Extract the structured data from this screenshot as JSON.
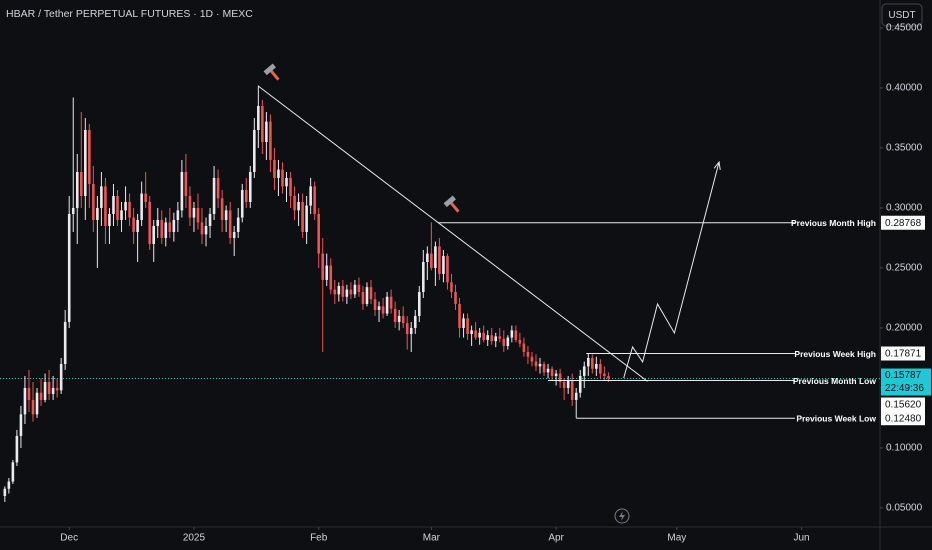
{
  "chart_data": {
    "type": "candlestick",
    "title": "HBAR / Tether PERPETUAL FUTURES · 1D · MEXC",
    "currency": "USDT",
    "colors": {
      "up": "#e8eaef",
      "down": "#ef5350",
      "last_price": "#22c7d6"
    },
    "ylim": [
      0.0358,
      0.4733
    ],
    "yticks": [
      {
        "value": 0.05,
        "label": "0.05000"
      },
      {
        "value": 0.1,
        "label": "0.10000"
      },
      {
        "value": 0.15,
        "label": "0.15000"
      },
      {
        "value": 0.2,
        "label": "0.20000"
      },
      {
        "value": 0.25,
        "label": "0.25000"
      },
      {
        "value": 0.3,
        "label": "0.30000"
      },
      {
        "value": 0.35,
        "label": "0.35000"
      },
      {
        "value": 0.4,
        "label": "0.40000"
      },
      {
        "value": 0.45,
        "label": "0.45000"
      }
    ],
    "xlim": [
      -1.2,
      216.5
    ],
    "xticks": [
      {
        "value": 16,
        "label": "Dec"
      },
      {
        "value": 47,
        "label": "2025"
      },
      {
        "value": 78,
        "label": "Feb"
      },
      {
        "value": 106,
        "label": "Mar"
      },
      {
        "value": 137,
        "label": "Apr"
      },
      {
        "value": 167,
        "label": "May"
      },
      {
        "value": 198,
        "label": "Jun"
      }
    ],
    "ohlc": [
      [
        0.06,
        0.068,
        0.055,
        0.066
      ],
      [
        0.066,
        0.075,
        0.062,
        0.072
      ],
      [
        0.072,
        0.09,
        0.07,
        0.088
      ],
      [
        0.088,
        0.115,
        0.085,
        0.11
      ],
      [
        0.11,
        0.135,
        0.1,
        0.128
      ],
      [
        0.128,
        0.16,
        0.12,
        0.15
      ],
      [
        0.15,
        0.165,
        0.13,
        0.14
      ],
      [
        0.14,
        0.155,
        0.122,
        0.128
      ],
      [
        0.128,
        0.15,
        0.125,
        0.146
      ],
      [
        0.146,
        0.158,
        0.135,
        0.14
      ],
      [
        0.14,
        0.162,
        0.138,
        0.155
      ],
      [
        0.155,
        0.165,
        0.14,
        0.145
      ],
      [
        0.145,
        0.16,
        0.14,
        0.15
      ],
      [
        0.15,
        0.158,
        0.142,
        0.148
      ],
      [
        0.148,
        0.175,
        0.145,
        0.17
      ],
      [
        0.17,
        0.215,
        0.165,
        0.205
      ],
      [
        0.205,
        0.31,
        0.2,
        0.295
      ],
      [
        0.295,
        0.392,
        0.28,
        0.3
      ],
      [
        0.3,
        0.345,
        0.27,
        0.33
      ],
      [
        0.33,
        0.38,
        0.3,
        0.31
      ],
      [
        0.31,
        0.375,
        0.29,
        0.365
      ],
      [
        0.365,
        0.37,
        0.3,
        0.32
      ],
      [
        0.32,
        0.335,
        0.28,
        0.29
      ],
      [
        0.29,
        0.31,
        0.25,
        0.3
      ],
      [
        0.3,
        0.33,
        0.285,
        0.318
      ],
      [
        0.318,
        0.325,
        0.27,
        0.285
      ],
      [
        0.285,
        0.3,
        0.27,
        0.295
      ],
      [
        0.295,
        0.32,
        0.285,
        0.31
      ],
      [
        0.31,
        0.315,
        0.285,
        0.29
      ],
      [
        0.29,
        0.305,
        0.28,
        0.298
      ],
      [
        0.298,
        0.318,
        0.29,
        0.305
      ],
      [
        0.305,
        0.312,
        0.285,
        0.292
      ],
      [
        0.292,
        0.3,
        0.27,
        0.28
      ],
      [
        0.28,
        0.295,
        0.255,
        0.29
      ],
      [
        0.29,
        0.322,
        0.285,
        0.312
      ],
      [
        0.312,
        0.33,
        0.3,
        0.305
      ],
      [
        0.305,
        0.31,
        0.265,
        0.27
      ],
      [
        0.27,
        0.29,
        0.255,
        0.285
      ],
      [
        0.285,
        0.3,
        0.275,
        0.29
      ],
      [
        0.29,
        0.298,
        0.27,
        0.275
      ],
      [
        0.275,
        0.292,
        0.268,
        0.288
      ],
      [
        0.288,
        0.3,
        0.275,
        0.28
      ],
      [
        0.28,
        0.296,
        0.272,
        0.29
      ],
      [
        0.29,
        0.305,
        0.28,
        0.298
      ],
      [
        0.298,
        0.34,
        0.292,
        0.33
      ],
      [
        0.33,
        0.345,
        0.3,
        0.31
      ],
      [
        0.31,
        0.318,
        0.285,
        0.292
      ],
      [
        0.292,
        0.305,
        0.28,
        0.3
      ],
      [
        0.3,
        0.312,
        0.282,
        0.288
      ],
      [
        0.288,
        0.3,
        0.27,
        0.278
      ],
      [
        0.278,
        0.292,
        0.268,
        0.285
      ],
      [
        0.285,
        0.3,
        0.275,
        0.295
      ],
      [
        0.295,
        0.335,
        0.29,
        0.325
      ],
      [
        0.325,
        0.332,
        0.3,
        0.308
      ],
      [
        0.308,
        0.315,
        0.28,
        0.29
      ],
      [
        0.29,
        0.302,
        0.28,
        0.298
      ],
      [
        0.298,
        0.305,
        0.27,
        0.275
      ],
      [
        0.275,
        0.285,
        0.26,
        0.28
      ],
      [
        0.28,
        0.3,
        0.275,
        0.292
      ],
      [
        0.292,
        0.32,
        0.288,
        0.315
      ],
      [
        0.315,
        0.325,
        0.3,
        0.305
      ],
      [
        0.305,
        0.335,
        0.3,
        0.33
      ],
      [
        0.33,
        0.375,
        0.325,
        0.365
      ],
      [
        0.365,
        0.402,
        0.35,
        0.385
      ],
      [
        0.385,
        0.39,
        0.345,
        0.355
      ],
      [
        0.355,
        0.38,
        0.34,
        0.372
      ],
      [
        0.372,
        0.378,
        0.33,
        0.34
      ],
      [
        0.34,
        0.35,
        0.315,
        0.325
      ],
      [
        0.325,
        0.34,
        0.31,
        0.332
      ],
      [
        0.332,
        0.338,
        0.312,
        0.318
      ],
      [
        0.318,
        0.33,
        0.305,
        0.325
      ],
      [
        0.325,
        0.33,
        0.3,
        0.31
      ],
      [
        0.31,
        0.318,
        0.29,
        0.298
      ],
      [
        0.298,
        0.312,
        0.285,
        0.305
      ],
      [
        0.305,
        0.312,
        0.275,
        0.28
      ],
      [
        0.28,
        0.31,
        0.27,
        0.302
      ],
      [
        0.302,
        0.325,
        0.295,
        0.318
      ],
      [
        0.318,
        0.322,
        0.29,
        0.295
      ],
      [
        0.295,
        0.3,
        0.25,
        0.262
      ],
      [
        0.262,
        0.275,
        0.18,
        0.24
      ],
      [
        0.24,
        0.262,
        0.235,
        0.252
      ],
      [
        0.252,
        0.258,
        0.228,
        0.232
      ],
      [
        0.232,
        0.24,
        0.22,
        0.228
      ],
      [
        0.228,
        0.238,
        0.222,
        0.235
      ],
      [
        0.235,
        0.24,
        0.222,
        0.226
      ],
      [
        0.226,
        0.236,
        0.22,
        0.232
      ],
      [
        0.232,
        0.238,
        0.224,
        0.228
      ],
      [
        0.228,
        0.24,
        0.225,
        0.236
      ],
      [
        0.236,
        0.242,
        0.226,
        0.23
      ],
      [
        0.23,
        0.235,
        0.215,
        0.22
      ],
      [
        0.22,
        0.238,
        0.218,
        0.234
      ],
      [
        0.234,
        0.24,
        0.22,
        0.224
      ],
      [
        0.224,
        0.23,
        0.21,
        0.215
      ],
      [
        0.215,
        0.222,
        0.205,
        0.218
      ],
      [
        0.218,
        0.225,
        0.208,
        0.212
      ],
      [
        0.212,
        0.23,
        0.21,
        0.226
      ],
      [
        0.226,
        0.232,
        0.212,
        0.216
      ],
      [
        0.216,
        0.222,
        0.2,
        0.205
      ],
      [
        0.205,
        0.215,
        0.198,
        0.21
      ],
      [
        0.21,
        0.218,
        0.2,
        0.204
      ],
      [
        0.204,
        0.21,
        0.182,
        0.195
      ],
      [
        0.195,
        0.205,
        0.18,
        0.2
      ],
      [
        0.2,
        0.215,
        0.195,
        0.21
      ],
      [
        0.21,
        0.235,
        0.205,
        0.23
      ],
      [
        0.23,
        0.265,
        0.225,
        0.255
      ],
      [
        0.255,
        0.268,
        0.24,
        0.262
      ],
      [
        0.262,
        0.288,
        0.248,
        0.25
      ],
      [
        0.25,
        0.272,
        0.235,
        0.268
      ],
      [
        0.268,
        0.275,
        0.24,
        0.245
      ],
      [
        0.245,
        0.265,
        0.238,
        0.26
      ],
      [
        0.26,
        0.262,
        0.232,
        0.238
      ],
      [
        0.238,
        0.245,
        0.225,
        0.23
      ],
      [
        0.23,
        0.236,
        0.215,
        0.22
      ],
      [
        0.22,
        0.225,
        0.192,
        0.2
      ],
      [
        0.2,
        0.212,
        0.192,
        0.208
      ],
      [
        0.208,
        0.212,
        0.19,
        0.195
      ],
      [
        0.195,
        0.202,
        0.185,
        0.198
      ],
      [
        0.198,
        0.205,
        0.19,
        0.192
      ],
      [
        0.192,
        0.2,
        0.186,
        0.196
      ],
      [
        0.196,
        0.202,
        0.188,
        0.19
      ],
      [
        0.19,
        0.198,
        0.185,
        0.194
      ],
      [
        0.194,
        0.2,
        0.186,
        0.189
      ],
      [
        0.189,
        0.196,
        0.184,
        0.193
      ],
      [
        0.193,
        0.2,
        0.188,
        0.191
      ],
      [
        0.191,
        0.198,
        0.18,
        0.185
      ],
      [
        0.185,
        0.194,
        0.182,
        0.192
      ],
      [
        0.192,
        0.202,
        0.188,
        0.198
      ],
      [
        0.198,
        0.202,
        0.188,
        0.19
      ],
      [
        0.19,
        0.196,
        0.184,
        0.187
      ],
      [
        0.187,
        0.192,
        0.176,
        0.18
      ],
      [
        0.18,
        0.185,
        0.17,
        0.176
      ],
      [
        0.176,
        0.18,
        0.168,
        0.172
      ],
      [
        0.172,
        0.178,
        0.164,
        0.168
      ],
      [
        0.168,
        0.175,
        0.162,
        0.17
      ],
      [
        0.17,
        0.172,
        0.16,
        0.163
      ],
      [
        0.163,
        0.17,
        0.158,
        0.166
      ],
      [
        0.166,
        0.168,
        0.156,
        0.16
      ],
      [
        0.16,
        0.165,
        0.152,
        0.162
      ],
      [
        0.162,
        0.166,
        0.15,
        0.155
      ],
      [
        0.155,
        0.158,
        0.14,
        0.15
      ],
      [
        0.15,
        0.16,
        0.145,
        0.156
      ],
      [
        0.156,
        0.162,
        0.135,
        0.14
      ],
      [
        0.14,
        0.15,
        0.125,
        0.146
      ],
      [
        0.146,
        0.165,
        0.142,
        0.16
      ],
      [
        0.16,
        0.172,
        0.15,
        0.168
      ],
      [
        0.168,
        0.179,
        0.16,
        0.175
      ],
      [
        0.175,
        0.178,
        0.162,
        0.166
      ],
      [
        0.166,
        0.176,
        0.16,
        0.17
      ],
      [
        0.17,
        0.174,
        0.158,
        0.162
      ],
      [
        0.162,
        0.168,
        0.156,
        0.16
      ],
      [
        0.16,
        0.163,
        0.155,
        0.15787
      ]
    ],
    "last_price": 0.15787,
    "countdown": "22:49:36",
    "levels": [
      {
        "label": "Previous Month High",
        "price": 0.28768,
        "x_start": 107.6
      },
      {
        "label": "Previous Week High",
        "price": 0.17871,
        "x_start": 144.5
      },
      {
        "label": "Previous Month Low",
        "price": {
          "value": 0.1562,
          "label": "0.15620"
        },
        "x_start": 135
      },
      {
        "label": "Previous Week Low",
        "price": {
          "value": 0.1248,
          "label": "0.12480"
        },
        "x_start": 142
      }
    ],
    "trendline": {
      "x": [
        63,
        159.7
      ],
      "y": [
        0.4015,
        0.1555
      ]
    },
    "projection": {
      "x": [
        153.8,
        156.0,
        158.5,
        162.2,
        166.4,
        177.5
      ],
      "y": [
        0.1583,
        0.1842,
        0.1717,
        0.22,
        0.1958,
        0.3383
      ]
    }
  }
}
